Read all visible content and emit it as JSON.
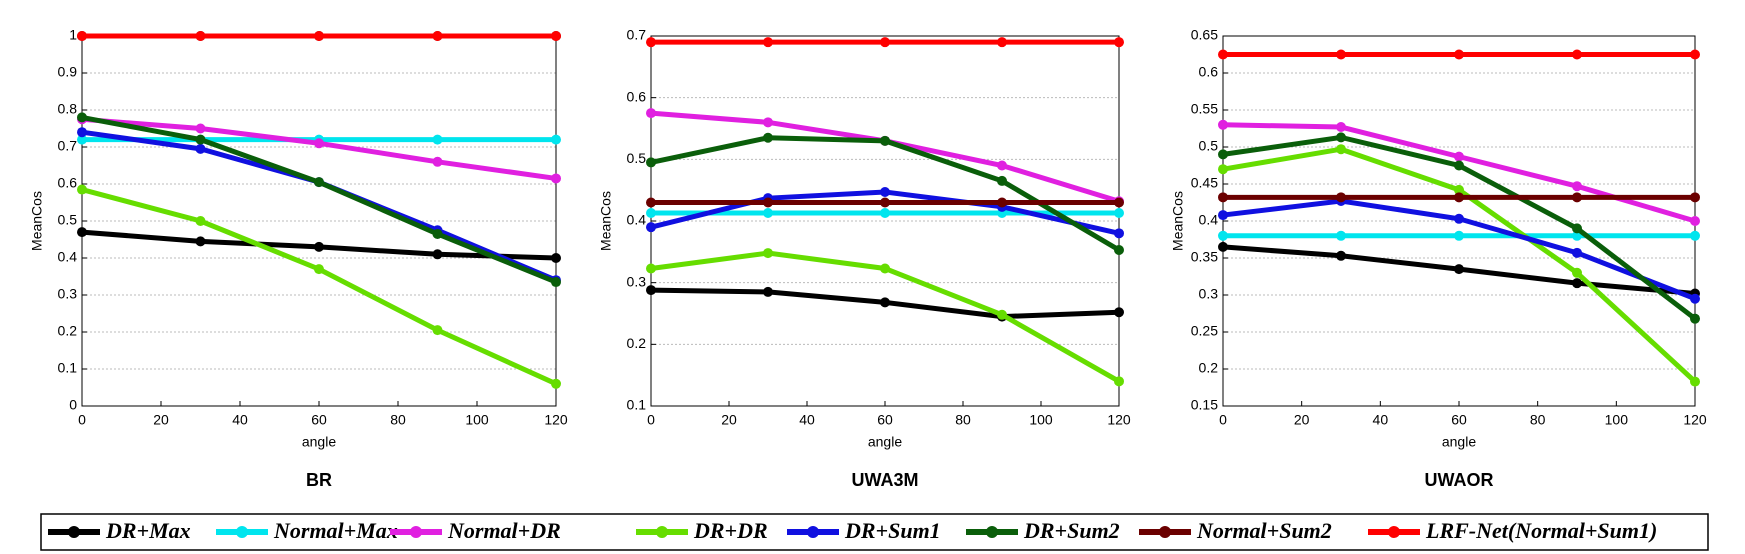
{
  "chart_data": [
    {
      "type": "line",
      "title": "BR",
      "xlabel": "angle",
      "ylabel": "MeanCos",
      "x": [
        0,
        30,
        60,
        90,
        120
      ],
      "xlim": [
        0,
        120
      ],
      "xticks": [
        0,
        20,
        40,
        60,
        80,
        100,
        120
      ],
      "ylim": [
        0,
        1
      ],
      "yticks": [
        0,
        0.1,
        0.2,
        0.3,
        0.4,
        0.5,
        0.6,
        0.7,
        0.8,
        0.9,
        1
      ],
      "grid": true,
      "series": [
        {
          "name": "DR+Max",
          "color": "#000000",
          "values": [
            0.47,
            0.445,
            0.43,
            0.41,
            0.4
          ]
        },
        {
          "name": "Normal+Max",
          "color": "#00e5ee",
          "values": [
            0.72,
            0.72,
            0.72,
            0.72,
            0.72
          ]
        },
        {
          "name": "Normal+DR",
          "color": "#e020e0",
          "values": [
            0.775,
            0.75,
            0.71,
            0.66,
            0.615
          ]
        },
        {
          "name": "DR+DR",
          "color": "#66dd00",
          "values": [
            0.585,
            0.5,
            0.37,
            0.205,
            0.06
          ]
        },
        {
          "name": "DR+Sum1",
          "color": "#1010e0",
          "values": [
            0.74,
            0.695,
            0.605,
            0.475,
            0.34
          ]
        },
        {
          "name": "DR+Sum2",
          "color": "#0a5e0a",
          "values": [
            0.78,
            0.72,
            0.605,
            0.465,
            0.335
          ]
        },
        {
          "name": "Normal+Sum2",
          "color": "#6b0000",
          "values": [
            1,
            1,
            1,
            1,
            1
          ]
        },
        {
          "name": "LRF-Net(Normal+Sum1)",
          "color": "#ff0000",
          "values": [
            1,
            1,
            1,
            1,
            1
          ]
        }
      ]
    },
    {
      "type": "line",
      "title": "UWA3M",
      "xlabel": "angle",
      "ylabel": "MeanCos",
      "x": [
        0,
        30,
        60,
        90,
        120
      ],
      "xlim": [
        0,
        120
      ],
      "xticks": [
        0,
        20,
        40,
        60,
        80,
        100,
        120
      ],
      "ylim": [
        0.1,
        0.7
      ],
      "yticks": [
        0.1,
        0.2,
        0.3,
        0.4,
        0.5,
        0.6,
        0.7
      ],
      "grid": true,
      "series": [
        {
          "name": "DR+Max",
          "color": "#000000",
          "values": [
            0.288,
            0.285,
            0.268,
            0.245,
            0.252
          ]
        },
        {
          "name": "Normal+Max",
          "color": "#00e5ee",
          "values": [
            0.413,
            0.413,
            0.413,
            0.413,
            0.413
          ]
        },
        {
          "name": "Normal+DR",
          "color": "#e020e0",
          "values": [
            0.575,
            0.56,
            0.53,
            0.49,
            0.432
          ]
        },
        {
          "name": "DR+DR",
          "color": "#66dd00",
          "values": [
            0.323,
            0.348,
            0.323,
            0.248,
            0.14
          ]
        },
        {
          "name": "DR+Sum1",
          "color": "#1010e0",
          "values": [
            0.39,
            0.437,
            0.447,
            0.423,
            0.38
          ]
        },
        {
          "name": "DR+Sum2",
          "color": "#0a5e0a",
          "values": [
            0.495,
            0.535,
            0.53,
            0.465,
            0.353
          ]
        },
        {
          "name": "Normal+Sum2",
          "color": "#6b0000",
          "values": [
            0.43,
            0.43,
            0.43,
            0.43,
            0.43
          ]
        },
        {
          "name": "LRF-Net(Normal+Sum1)",
          "color": "#ff0000",
          "values": [
            0.69,
            0.69,
            0.69,
            0.69,
            0.69
          ]
        }
      ]
    },
    {
      "type": "line",
      "title": "UWAOR",
      "xlabel": "angle",
      "ylabel": "MeanCos",
      "x": [
        0,
        30,
        60,
        90,
        120
      ],
      "xlim": [
        0,
        120
      ],
      "xticks": [
        0,
        20,
        40,
        60,
        80,
        100,
        120
      ],
      "ylim": [
        0.15,
        0.65
      ],
      "yticks": [
        0.15,
        0.2,
        0.25,
        0.3,
        0.35,
        0.4,
        0.45,
        0.5,
        0.55,
        0.6,
        0.65
      ],
      "grid": true,
      "series": [
        {
          "name": "DR+Max",
          "color": "#000000",
          "values": [
            0.365,
            0.353,
            0.335,
            0.316,
            0.302
          ]
        },
        {
          "name": "Normal+Max",
          "color": "#00e5ee",
          "values": [
            0.38,
            0.38,
            0.38,
            0.38,
            0.38
          ]
        },
        {
          "name": "Normal+DR",
          "color": "#e020e0",
          "values": [
            0.53,
            0.527,
            0.487,
            0.447,
            0.4
          ]
        },
        {
          "name": "DR+DR",
          "color": "#66dd00",
          "values": [
            0.47,
            0.497,
            0.442,
            0.33,
            0.183
          ]
        },
        {
          "name": "DR+Sum1",
          "color": "#1010e0",
          "values": [
            0.408,
            0.427,
            0.403,
            0.357,
            0.295
          ]
        },
        {
          "name": "DR+Sum2",
          "color": "#0a5e0a",
          "values": [
            0.49,
            0.513,
            0.475,
            0.39,
            0.268
          ]
        },
        {
          "name": "Normal+Sum2",
          "color": "#6b0000",
          "values": [
            0.432,
            0.432,
            0.432,
            0.432,
            0.432
          ]
        },
        {
          "name": "LRF-Net(Normal+Sum1)",
          "color": "#ff0000",
          "values": [
            0.625,
            0.625,
            0.625,
            0.625,
            0.625
          ]
        }
      ]
    }
  ]
}
